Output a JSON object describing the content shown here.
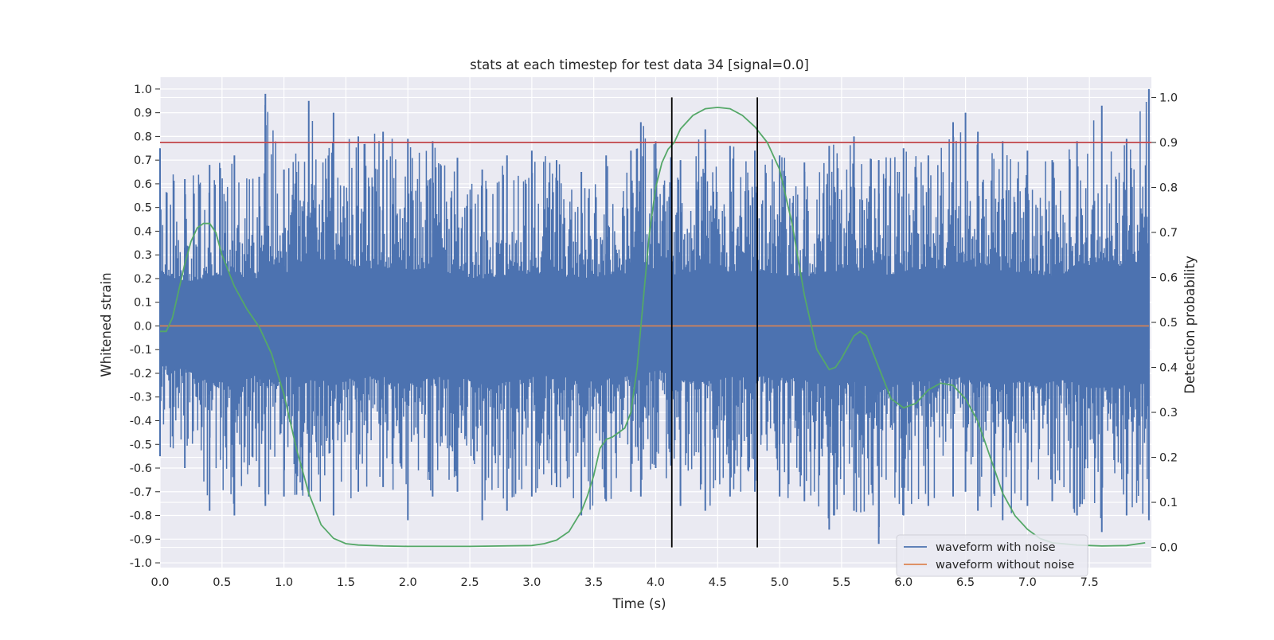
{
  "chart_data": {
    "type": "line",
    "title": "stats at each timestep for test data 34 [signal=0.0]",
    "xlabel": "Time (s)",
    "ylabel": "Whitened strain",
    "y2label": "Detection probability",
    "xlim": [
      0.0,
      8.0
    ],
    "ylim": [
      -1.02,
      1.05
    ],
    "y2lim": [
      -0.045,
      1.045
    ],
    "x_ticks": [
      "0.0",
      "0.5",
      "1.0",
      "1.5",
      "2.0",
      "2.5",
      "3.0",
      "3.5",
      "4.0",
      "4.5",
      "5.0",
      "5.5",
      "6.0",
      "6.5",
      "7.0",
      "7.5"
    ],
    "y_ticks": [
      "1.0",
      "0.9",
      "0.8",
      "0.7",
      "0.6",
      "0.5",
      "0.4",
      "0.3",
      "0.2",
      "0.1",
      "0.0",
      "-0.1",
      "-0.2",
      "-0.3",
      "-0.4",
      "-0.5",
      "-0.6",
      "-0.7",
      "-0.8",
      "-0.9",
      "-1.0"
    ],
    "y2_ticks": [
      "1.0",
      "0.9",
      "0.8",
      "0.7",
      "0.6",
      "0.5",
      "0.4",
      "0.3",
      "0.2",
      "0.1",
      "0.0"
    ],
    "grid": true,
    "legend_position": "lower-right",
    "threshold": 0.9,
    "vlines_x": [
      4.13,
      4.82
    ],
    "series": [
      {
        "name": "waveform with noise",
        "color": "#4c72b0",
        "axis": "left",
        "note_envelope_samples": true,
        "x": [
          0.0,
          0.2,
          0.4,
          0.6,
          0.8,
          0.85,
          1.0,
          1.2,
          1.4,
          1.6,
          1.8,
          2.0,
          2.2,
          2.4,
          2.6,
          2.8,
          3.0,
          3.2,
          3.4,
          3.6,
          3.8,
          3.88,
          4.0,
          4.2,
          4.4,
          4.6,
          4.8,
          5.0,
          5.2,
          5.4,
          5.6,
          5.8,
          6.0,
          6.2,
          6.4,
          6.5,
          6.6,
          6.8,
          7.0,
          7.2,
          7.4,
          7.6,
          7.8,
          7.98
        ],
        "upper": [
          0.75,
          0.62,
          0.68,
          0.72,
          0.63,
          0.98,
          0.66,
          0.95,
          0.9,
          0.8,
          0.82,
          0.79,
          0.78,
          0.71,
          0.66,
          0.72,
          0.74,
          0.7,
          0.65,
          0.72,
          0.74,
          0.86,
          0.78,
          0.7,
          0.83,
          0.76,
          0.74,
          0.72,
          0.69,
          0.76,
          0.8,
          0.7,
          0.75,
          0.72,
          0.86,
          0.9,
          0.82,
          0.78,
          0.74,
          0.7,
          0.78,
          0.93,
          0.79,
          1.0
        ],
        "lower": [
          -0.55,
          -0.6,
          -0.78,
          -0.8,
          -0.68,
          -0.76,
          -0.72,
          -0.72,
          -0.8,
          -0.7,
          -0.68,
          -0.82,
          -0.72,
          -0.7,
          -0.82,
          -0.78,
          -0.72,
          -0.68,
          -0.8,
          -0.74,
          -0.7,
          -0.72,
          -0.6,
          -0.76,
          -0.78,
          -0.72,
          -0.7,
          -0.72,
          -0.74,
          -0.86,
          -0.78,
          -0.92,
          -0.8,
          -0.76,
          -0.72,
          -0.7,
          -0.78,
          -0.82,
          -0.76,
          -0.74,
          -0.8,
          -0.87,
          -0.8,
          -0.82
        ]
      },
      {
        "name": "waveform without noise",
        "color": "#dd8452",
        "axis": "left",
        "x": [
          0.0,
          7.98
        ],
        "y": [
          0.0,
          0.0
        ]
      },
      {
        "name": "",
        "color": "#55a868",
        "axis": "right",
        "x": [
          0.0,
          0.05,
          0.1,
          0.15,
          0.2,
          0.25,
          0.3,
          0.35,
          0.4,
          0.45,
          0.5,
          0.6,
          0.7,
          0.8,
          0.9,
          1.0,
          1.1,
          1.2,
          1.3,
          1.4,
          1.5,
          1.6,
          1.8,
          2.0,
          2.5,
          3.0,
          3.1,
          3.2,
          3.3,
          3.4,
          3.45,
          3.5,
          3.55,
          3.6,
          3.65,
          3.7,
          3.75,
          3.8,
          3.85,
          3.9,
          3.95,
          4.0,
          4.05,
          4.1,
          4.15,
          4.2,
          4.3,
          4.4,
          4.5,
          4.6,
          4.7,
          4.8,
          4.9,
          5.0,
          5.1,
          5.2,
          5.3,
          5.4,
          5.45,
          5.5,
          5.6,
          5.65,
          5.7,
          5.8,
          5.9,
          6.0,
          6.1,
          6.2,
          6.3,
          6.4,
          6.5,
          6.6,
          6.7,
          6.8,
          6.9,
          7.0,
          7.1,
          7.2,
          7.4,
          7.6,
          7.8,
          7.95
        ],
        "y": [
          0.48,
          0.48,
          0.51,
          0.57,
          0.63,
          0.68,
          0.71,
          0.72,
          0.72,
          0.7,
          0.65,
          0.58,
          0.53,
          0.49,
          0.43,
          0.34,
          0.22,
          0.12,
          0.05,
          0.02,
          0.008,
          0.005,
          0.003,
          0.002,
          0.002,
          0.004,
          0.008,
          0.016,
          0.035,
          0.08,
          0.115,
          0.16,
          0.22,
          0.24,
          0.245,
          0.255,
          0.265,
          0.3,
          0.4,
          0.55,
          0.7,
          0.8,
          0.855,
          0.885,
          0.9,
          0.93,
          0.96,
          0.975,
          0.978,
          0.975,
          0.96,
          0.935,
          0.9,
          0.84,
          0.72,
          0.56,
          0.44,
          0.395,
          0.4,
          0.42,
          0.47,
          0.48,
          0.47,
          0.4,
          0.33,
          0.31,
          0.32,
          0.35,
          0.365,
          0.36,
          0.33,
          0.28,
          0.2,
          0.12,
          0.07,
          0.04,
          0.02,
          0.01,
          0.005,
          0.003,
          0.004,
          0.01
        ]
      }
    ]
  }
}
